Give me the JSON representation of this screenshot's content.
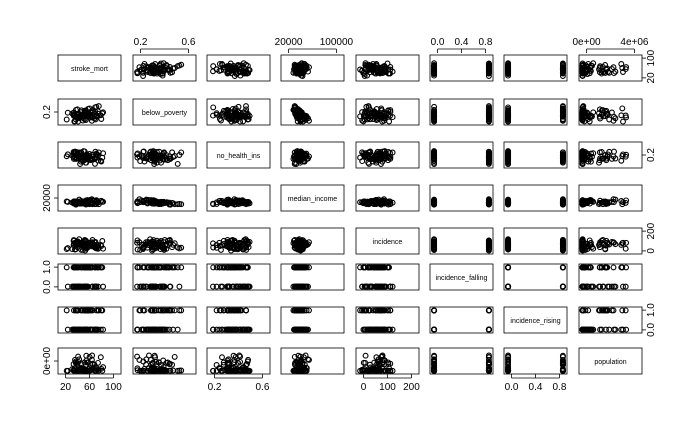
{
  "chart_data": {
    "type": "scatter",
    "variables": [
      "stroke_mort",
      "below_poverty",
      "no_health_ins",
      "median_income",
      "incidence",
      "incidence_falling",
      "incidence_rising",
      "population"
    ],
    "axis_ticks": {
      "top": [
        {
          "variable": "below_poverty",
          "labels": [
            "0.2",
            "0.6"
          ]
        },
        {
          "variable": "median_income",
          "labels": [
            "20000",
            "100000"
          ]
        },
        {
          "variable": "incidence_falling",
          "labels": [
            "0.0",
            "0.4",
            "0.8"
          ]
        },
        {
          "variable": "population",
          "labels": [
            "0e+00",
            "4e+06"
          ]
        }
      ],
      "bottom": [
        {
          "variable": "stroke_mort",
          "labels": [
            "20",
            "60",
            "100"
          ]
        },
        {
          "variable": "no_health_ins",
          "labels": [
            "0.2",
            "0.6"
          ]
        },
        {
          "variable": "incidence",
          "labels": [
            "0",
            "100",
            "200"
          ]
        },
        {
          "variable": "incidence_rising",
          "labels": [
            "0.0",
            "0.4",
            "0.8"
          ]
        }
      ],
      "left": [
        {
          "variable": "below_poverty",
          "labels": [
            "0.2"
          ]
        },
        {
          "variable": "median_income",
          "labels": [
            "20000"
          ]
        },
        {
          "variable": "incidence_falling",
          "labels": [
            "0.0",
            "1.0"
          ]
        },
        {
          "variable": "population",
          "labels": [
            "0e+00"
          ]
        }
      ],
      "right": [
        {
          "variable": "stroke_mort",
          "labels": [
            "20",
            "100"
          ]
        },
        {
          "variable": "no_health_ins",
          "labels": [
            "0.2"
          ]
        },
        {
          "variable": "incidence",
          "labels": [
            "0",
            "200"
          ]
        },
        {
          "variable": "incidence_rising",
          "labels": [
            "0.0",
            "1.0"
          ]
        }
      ]
    },
    "ranges": {
      "stroke_mort": [
        15,
        105
      ],
      "below_poverty": [
        0.0,
        0.75
      ],
      "no_health_ins": [
        0.03,
        0.75
      ],
      "median_income": [
        20000,
        130000
      ],
      "incidence": [
        0,
        230
      ],
      "incidence_falling": [
        0,
        1
      ],
      "incidence_rising": [
        0,
        1
      ],
      "population": [
        0,
        5000000
      ]
    },
    "ticks": {
      "stroke_mort": [
        20,
        60,
        100
      ],
      "below_poverty": [
        0.2,
        0.6
      ],
      "no_health_ins": [
        0.2,
        0.6
      ],
      "median_income": [
        20000,
        100000
      ],
      "incidence": [
        0,
        100,
        200
      ],
      "incidence_falling": [
        0.0,
        0.4,
        0.8
      ],
      "incidence_rising": [
        0.0,
        0.4,
        0.8
      ],
      "population": [
        0,
        4000000
      ]
    },
    "grid": false,
    "legend": "none"
  }
}
